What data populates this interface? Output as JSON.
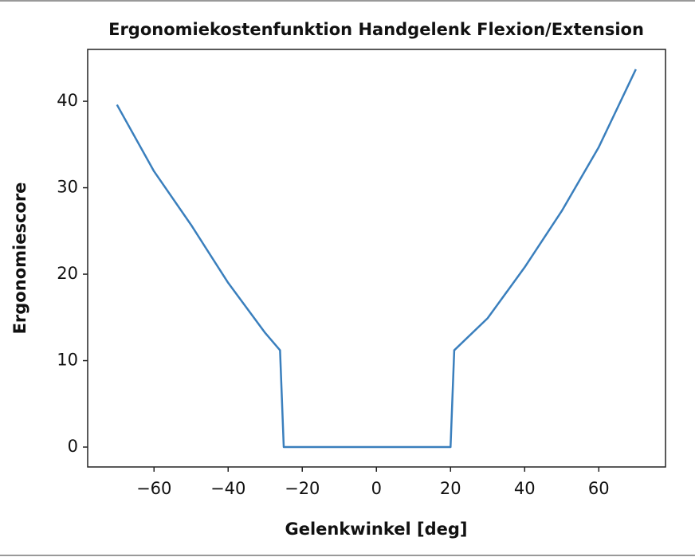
{
  "chart_data": {
    "type": "line",
    "title": "Ergonomiekostenfunktion Handgelenk Flexion/Extension",
    "x_label": "Gelenkwinkel [deg]",
    "y_label": "Ergonomiescore",
    "x": [
      -70,
      -60,
      -50,
      -40,
      -30,
      -26,
      -25,
      20,
      21,
      30,
      40,
      50,
      60,
      70
    ],
    "series": [
      {
        "name": "Ergonomiescore",
        "color": "#3a7fbd",
        "values": [
          39.6,
          31.9,
          25.7,
          19.0,
          13.2,
          11.2,
          0,
          0,
          11.2,
          14.9,
          20.8,
          27.3,
          34.7,
          43.7
        ]
      }
    ],
    "xlim": [
      -77.9,
      78
    ],
    "ylim": [
      -2.3,
      46
    ],
    "xticks": [
      {
        "value": -60,
        "label": "−60"
      },
      {
        "value": -40,
        "label": "−40"
      },
      {
        "value": -20,
        "label": "−20"
      },
      0,
      20,
      40,
      60
    ],
    "yticks": [
      0,
      10,
      20,
      30,
      40
    ]
  }
}
